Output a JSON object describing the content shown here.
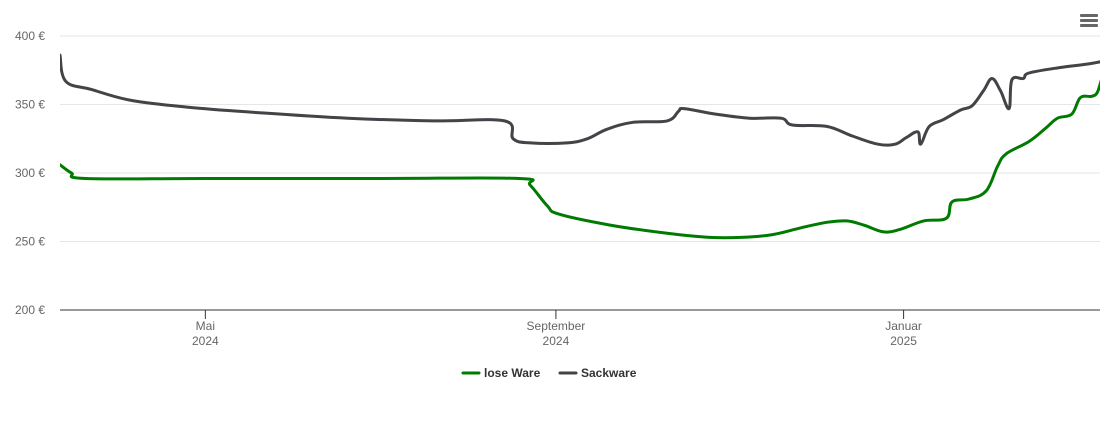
{
  "chart_data": {
    "type": "line",
    "title": "",
    "xlabel": "",
    "ylabel": "",
    "ylim": [
      200,
      400
    ],
    "xlim": [
      "2024-03-11",
      "2025-03-14"
    ],
    "y_ticks": [
      {
        "value": 200,
        "label": "200 €"
      },
      {
        "value": 250,
        "label": "250 €"
      },
      {
        "value": 300,
        "label": "300 €"
      },
      {
        "value": 350,
        "label": "350 €"
      },
      {
        "value": 400,
        "label": "400 €"
      }
    ],
    "x_ticks": [
      {
        "date": "2024-05-01",
        "month": "Mai",
        "year": "2024"
      },
      {
        "date": "2024-09-01",
        "month": "September",
        "year": "2024"
      },
      {
        "date": "2025-01-01",
        "month": "Januar",
        "year": "2025"
      }
    ],
    "grid": true,
    "legend_position": "bottom-center",
    "series": [
      {
        "name": "lose Ware",
        "color": "#007a00",
        "points": [
          [
            "2024-03-11",
            306
          ],
          [
            "2024-03-15",
            300
          ],
          [
            "2024-03-20",
            296
          ],
          [
            "2024-05-01",
            296
          ],
          [
            "2024-07-01",
            296
          ],
          [
            "2024-08-19",
            296
          ],
          [
            "2024-08-23",
            291
          ],
          [
            "2024-08-29",
            276
          ],
          [
            "2024-09-02",
            270
          ],
          [
            "2024-09-20",
            262
          ],
          [
            "2024-10-10",
            256
          ],
          [
            "2024-10-25",
            253
          ],
          [
            "2024-11-05",
            253
          ],
          [
            "2024-11-16",
            255
          ],
          [
            "2024-11-26",
            260
          ],
          [
            "2024-12-05",
            264
          ],
          [
            "2024-12-12",
            265
          ],
          [
            "2024-12-18",
            262
          ],
          [
            "2024-12-25",
            257
          ],
          [
            "2024-12-31",
            259
          ],
          [
            "2025-01-08",
            265
          ],
          [
            "2025-01-16",
            267
          ],
          [
            "2025-01-18",
            279
          ],
          [
            "2025-01-24",
            281
          ],
          [
            "2025-01-30",
            287
          ],
          [
            "2025-02-03",
            305
          ],
          [
            "2025-02-06",
            314
          ],
          [
            "2025-02-14",
            323
          ],
          [
            "2025-02-20",
            333
          ],
          [
            "2025-02-24",
            340
          ],
          [
            "2025-03-01",
            343
          ],
          [
            "2025-03-04",
            355
          ],
          [
            "2025-03-08",
            356
          ],
          [
            "2025-03-10",
            359
          ],
          [
            "2025-03-12",
            371
          ],
          [
            "2025-03-14",
            372
          ],
          [
            "2025-03-24",
            373
          ],
          [
            "2025-04-01",
            374
          ],
          [
            "2025-04-02",
            360
          ]
        ]
      },
      {
        "name": "Sackware",
        "color": "#434348",
        "points": [
          [
            "2024-03-11",
            386
          ],
          [
            "2024-03-13",
            367
          ],
          [
            "2024-03-22",
            361
          ],
          [
            "2024-04-05",
            353
          ],
          [
            "2024-04-25",
            348
          ],
          [
            "2024-05-20",
            344
          ],
          [
            "2024-06-20",
            340
          ],
          [
            "2024-07-20",
            338
          ],
          [
            "2024-08-14",
            338
          ],
          [
            "2024-08-17",
            325
          ],
          [
            "2024-08-23",
            322
          ],
          [
            "2024-09-05",
            322
          ],
          [
            "2024-09-12",
            325
          ],
          [
            "2024-09-19",
            332
          ],
          [
            "2024-09-28",
            337
          ],
          [
            "2024-10-10",
            338
          ],
          [
            "2024-10-14",
            345
          ],
          [
            "2024-10-16",
            347
          ],
          [
            "2024-10-27",
            343
          ],
          [
            "2024-11-08",
            340
          ],
          [
            "2024-11-19",
            340
          ],
          [
            "2024-11-23",
            335
          ],
          [
            "2024-12-05",
            334
          ],
          [
            "2024-12-14",
            327
          ],
          [
            "2024-12-23",
            321
          ],
          [
            "2024-12-29",
            321
          ],
          [
            "2025-01-02",
            326
          ],
          [
            "2025-01-06",
            330
          ],
          [
            "2025-01-07",
            321
          ],
          [
            "2025-01-10",
            334
          ],
          [
            "2025-01-15",
            339
          ],
          [
            "2025-01-21",
            346
          ],
          [
            "2025-01-25",
            349
          ],
          [
            "2025-01-29",
            360
          ],
          [
            "2025-02-01",
            369
          ],
          [
            "2025-02-04",
            360
          ],
          [
            "2025-02-07",
            347
          ],
          [
            "2025-02-08",
            368
          ],
          [
            "2025-02-12",
            369
          ],
          [
            "2025-02-14",
            373
          ],
          [
            "2025-02-25",
            377
          ],
          [
            "2025-03-08",
            380
          ],
          [
            "2025-03-16",
            384
          ],
          [
            "2025-03-20",
            389
          ],
          [
            "2025-03-26",
            389
          ],
          [
            "2025-04-02",
            388
          ]
        ]
      }
    ]
  },
  "ui": {
    "menu_icon": "hamburger-menu-icon"
  }
}
